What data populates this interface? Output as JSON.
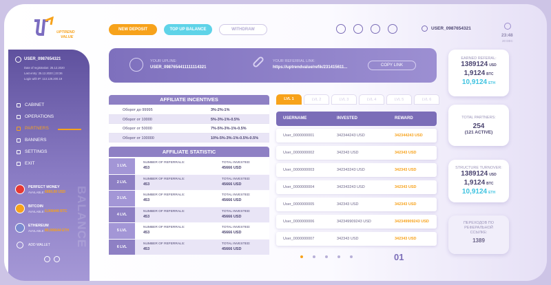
{
  "header": {
    "logo_top": "UPTREND",
    "logo_bottom": "VALUE",
    "buttons": [
      "NEW DEPOSIT",
      "TOP UP BALANCE",
      "WITHDRAW"
    ],
    "user": "USER_0987654321",
    "time": "23:48",
    "date": "20 DEC"
  },
  "sidebar": {
    "user": "USER_0987654321",
    "info": [
      "Date of registration: 25.12.2020",
      "Last entry: 25.12.2020 | 23:36",
      "Login with IP: 113.126.200.19"
    ],
    "menu": [
      "CABINET",
      "OPERATIONS",
      "PARTNERS",
      "BANNERS",
      "SETTINGS",
      "EXIT"
    ],
    "wallets": [
      {
        "name": "PERFECT MONEY",
        "label": "AVAILABLE:",
        "amount": "6880,00 USD"
      },
      {
        "name": "BITCOIN",
        "label": "AVAILABLE:",
        "amount": "0,006446 BTC"
      },
      {
        "name": "ETHEREUM",
        "label": "AVAILABLE:",
        "amount": "80,006644 ETH"
      }
    ],
    "add_wallet": "ADD WALLET",
    "balance": "BALANCE"
  },
  "upline": {
    "label": "YOUR UPLINE:",
    "value": "USER_0987654411111114321",
    "link_label": "YOUR REFERRAL LINK:",
    "link": "https://uptrendvalue/refik/231415611...",
    "copy": "COPY LINK"
  },
  "incentives": {
    "title": "AFFILIATE INCENTIVES",
    "rows": [
      [
        "Оборот до 99995",
        "3%-2%-1%"
      ],
      [
        "Оборот от 10000",
        "5%-3%-1%-0.5%"
      ],
      [
        "Оборот от 50000",
        "7%-5%-3%-1%-0.5%"
      ],
      [
        "Оборот от 100000",
        "10%-5%-3%-1%-0.5%-0.5%"
      ]
    ]
  },
  "statistic": {
    "title": "AFFILIATE STATISTIC",
    "rows": [
      {
        "level": "1 LVL",
        "ref_label": "NUMBER OF REFERRALS:",
        "referrals": "453",
        "inv_label": "TOTAL INVESTED:",
        "invested": "45666 USD"
      },
      {
        "level": "2 LVL",
        "ref_label": "NUMBER OF REFERRALS:",
        "referrals": "453",
        "inv_label": "TOTAL INVESTED:",
        "invested": "45666 USD"
      },
      {
        "level": "3 LVL",
        "ref_label": "NUMBER OF REFERRALS:",
        "referrals": "453",
        "inv_label": "TOTAL INVESTED:",
        "invested": "45666 USD"
      },
      {
        "level": "4 LVL",
        "ref_label": "NUMBER OF REFERRALS:",
        "referrals": "453",
        "inv_label": "TOTAL INVESTED:",
        "invested": "45666 USD"
      },
      {
        "level": "5 LVL",
        "ref_label": "NUMBER OF REFERRALS:",
        "referrals": "453",
        "inv_label": "TOTAL INVESTED:",
        "invested": "45666 USD"
      },
      {
        "level": "6 LVL",
        "ref_label": "NUMBER OF REFERRALS:",
        "referrals": "453",
        "inv_label": "TOTAL INVESTED:",
        "invested": "45666 USD"
      }
    ]
  },
  "tabs": [
    "LVL 1",
    "LVL 2",
    "LVL 3",
    "LVL 4",
    "LVL 5",
    "LVL 6"
  ],
  "table": {
    "header": [
      "USERNAME",
      "INVESTED",
      "REWARD"
    ],
    "rows": [
      [
        "User_0000000001",
        "342344243 USD",
        "342344243 USD"
      ],
      [
        "User_0000000002",
        "342343 USD",
        "342343 USD"
      ],
      [
        "User_0000000003",
        "342343243 USD",
        "342343 USD"
      ],
      [
        "User_0000000004",
        "342343243 USD",
        "342343 USD"
      ],
      [
        "User_0000000005",
        "342343 USD",
        "342343 USD"
      ],
      [
        "User_0000000006",
        "342349909243 USD",
        "342349909243 USD"
      ],
      [
        "User_0000000007",
        "342343 USD",
        "342343 USD"
      ]
    ]
  },
  "pagination": {
    "page": "01"
  },
  "cards": {
    "earned": {
      "label": "EARNED REFERAL:",
      "usd": "1389124",
      "usd_unit": "USD",
      "btc": "1,9124",
      "btc_unit": "BTC",
      "eth": "10,9124",
      "eth_unit": "ETH"
    },
    "partners": {
      "label": "TOTAL PARTNERS:",
      "total": "254",
      "active": "(121 ACTIVE)"
    },
    "turnover": {
      "label": "STRUCTURE TURNOVER:",
      "usd": "1389124",
      "usd_unit": "USD",
      "btc": "1,9124",
      "btc_unit": "BTC",
      "eth": "10,9124",
      "eth_unit": "ETH"
    },
    "clicks": {
      "label": "ПЕРЕХОДОВ ПО РЕФЕРАЛЬНОЙ ССЫЛКЕ:",
      "value": "1389"
    }
  }
}
